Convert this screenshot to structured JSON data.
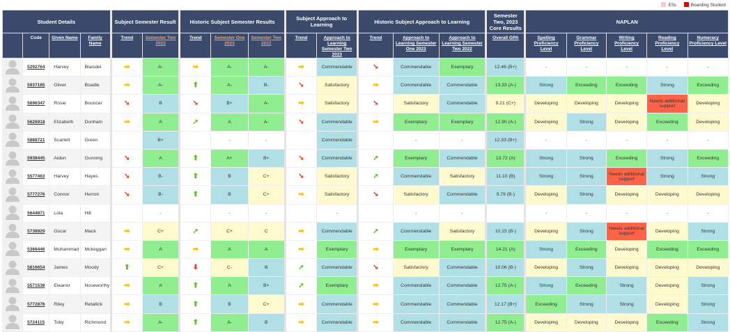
{
  "legend": [
    {
      "label": "ESL",
      "color": "#f7c6d9"
    },
    {
      "label": "Boarding Student",
      "color": "#e00000"
    }
  ],
  "groups": {
    "student_details": "Student Details",
    "subject_result": "Subject Semester Result",
    "historic_result": "Historic Subject Semester Results",
    "subject_atl": "Subject Approach to Learning",
    "historic_atl": "Historic Subject Approach to Learning",
    "core": "Semester Two, 2023 Core Results",
    "naplan": "NAPLAN"
  },
  "columns": [
    "",
    "Code",
    "Given Name",
    "Family Name",
    "Trend",
    "Semester Two 2023",
    "Trend",
    "Semester One 2023",
    "Semester Two 2022",
    "Trend",
    "Approach to Learning Semester Two 2023",
    "Trend",
    "Approach to Learning Semester One 2023",
    "Approach to Learning Semester Two 2022",
    "Overall GPA",
    "Spelling Proficiency Level",
    "Grammar Proficiency Level",
    "Writing Proficiency Level",
    "Reading Proficiency Level",
    "Numeracy Proficiency Level"
  ],
  "colors": {
    "green": "#90ee90",
    "blue": "#b0e0e6",
    "yellow": "#fffacd",
    "red": "#ff6347",
    "header": "#3b4a6b",
    "trend_right": "#ffc000",
    "trend_down": "#e8401c",
    "trend_up": "#5cc01c"
  },
  "rows": [
    {
      "code": "5292764",
      "given": "Harvey",
      "family": "Blaisdel",
      "t1": "right",
      "s2_23": "A-",
      "t2": "right",
      "s1_23": "A-",
      "s2_22": "A-",
      "t3": "right",
      "atl_s2_23": "Commendable",
      "t4": "down",
      "atl_s1_23": "Commendable",
      "atl_s2_22": "Exemplary",
      "gpa": "12.46 (B+)",
      "spelling": "-",
      "grammar": "-",
      "writing": "-",
      "reading": "-",
      "numeracy": "-"
    },
    {
      "code": "5937185",
      "given": "Oliver",
      "family": "Boadle",
      "t1": "right",
      "s2_23": "A-",
      "t2": "up-strong",
      "s1_23": "A-",
      "s2_22": "B-",
      "t3": "down",
      "atl_s2_23": "Satisfactory",
      "t4": "right",
      "atl_s1_23": "Commendable",
      "atl_s2_22": "Commendable",
      "gpa": "13.33 (A-)",
      "spelling": "Strong",
      "grammar": "Exceeding",
      "writing": "Exceeding",
      "reading": "Strong",
      "numeracy": "Exceeding"
    },
    {
      "code": "5696347",
      "given": "Rosie",
      "family": "Bouncer",
      "t1": "down",
      "s2_23": "B",
      "t2": "down",
      "s1_23": "B+",
      "s2_22": "A-",
      "t3": "right",
      "atl_s2_23": "Satisfactory",
      "t4": "down",
      "atl_s1_23": "Satisfactory",
      "atl_s2_22": "Commendable",
      "gpa": "9.21 (C+)",
      "spelling": "Developing",
      "grammar": "Developing",
      "writing": "Developing",
      "reading": "Needs additional support",
      "numeracy": "Developing"
    },
    {
      "code": "5626918",
      "given": "Elizabeth",
      "family": "Dunham",
      "t1": "right",
      "s2_23": "A",
      "t2": "up",
      "s1_23": "A",
      "s2_22": "A-",
      "t3": "down",
      "atl_s2_23": "Commendable",
      "t4": "right",
      "atl_s1_23": "Exemplary",
      "atl_s2_22": "Exemplary",
      "gpa": "12.90 (A-)",
      "spelling": "Developing",
      "grammar": "Strong",
      "writing": "Developing",
      "reading": "Exceeding",
      "numeracy": "Developing"
    },
    {
      "code": "5888721",
      "given": "Scarlett",
      "family": "Green",
      "t1": "",
      "s2_23": "B+",
      "t2": "",
      "s1_23": "-",
      "s2_22": "-",
      "t3": "",
      "atl_s2_23": "Commendable",
      "t4": "",
      "atl_s1_23": "-",
      "atl_s2_22": "-",
      "gpa": "12.33 (B+)",
      "spelling": "-",
      "grammar": "-",
      "writing": "-",
      "reading": "-",
      "numeracy": "-"
    },
    {
      "code": "5938445",
      "given": "Aiden",
      "family": "Gunning",
      "t1": "down",
      "s2_23": "A",
      "t2": "up-strong",
      "s1_23": "A+",
      "s2_22": "B+",
      "t3": "down",
      "atl_s2_23": "Commendable",
      "t4": "up",
      "atl_s1_23": "Exemplary",
      "atl_s2_22": "Commendable",
      "gpa": "13.72 (A)",
      "spelling": "Strong",
      "grammar": "Strong",
      "writing": "Exceeding",
      "reading": "Strong",
      "numeracy": "Exceeding"
    },
    {
      "code": "5577463",
      "given": "Harvey",
      "family": "Hayes",
      "t1": "down",
      "s2_23": "B-",
      "t2": "up-strong",
      "s1_23": "B",
      "s2_22": "C+",
      "t3": "down",
      "atl_s2_23": "Satisfactory",
      "t4": "up",
      "atl_s1_23": "Commendable",
      "atl_s2_22": "Satisfactory",
      "gpa": "11.10 (B)",
      "spelling": "Strong",
      "grammar": "Strong",
      "writing": "Needs additional support",
      "reading": "Strong",
      "numeracy": "Strong"
    },
    {
      "code": "5777276",
      "given": "Connor",
      "family": "Herron",
      "t1": "down",
      "s2_23": "B-",
      "t2": "up-strong",
      "s1_23": "B",
      "s2_22": "C+",
      "t3": "right",
      "atl_s2_23": "Satisfactory",
      "t4": "down",
      "atl_s1_23": "Satisfactory",
      "atl_s2_22": "Commendable",
      "gpa": "9.79 (B-)",
      "spelling": "Developing",
      "grammar": "Strong",
      "writing": "Developing",
      "reading": "Developing",
      "numeracy": "Developing"
    },
    {
      "code": "5644871",
      "given": "Lola",
      "family": "Hill",
      "t1": "",
      "s2_23": "-",
      "t2": "",
      "s1_23": "-",
      "s2_22": "-",
      "t3": "",
      "atl_s2_23": "-",
      "t4": "",
      "atl_s1_23": "-",
      "atl_s2_22": "-",
      "gpa": "",
      "spelling": "-",
      "grammar": "-",
      "writing": "-",
      "reading": "-",
      "numeracy": "-"
    },
    {
      "code": "5738929",
      "given": "Oscar",
      "family": "Mack",
      "t1": "right",
      "s2_23": "C+",
      "t2": "up",
      "s1_23": "C+",
      "s2_22": "C",
      "t3": "right",
      "atl_s2_23": "Commendable",
      "t4": "up",
      "atl_s1_23": "Commendable",
      "atl_s2_22": "Satisfactory",
      "gpa": "10.15 (B-)",
      "spelling": "Developing",
      "grammar": "Strong",
      "writing": "Needs additional support",
      "reading": "Developing",
      "numeracy": "Strong"
    },
    {
      "code": "5366446",
      "given": "Muhammad",
      "family": "Mckeggan",
      "t1": "right",
      "s2_23": "A",
      "t2": "right",
      "s1_23": "A",
      "s2_22": "A",
      "t3": "right",
      "atl_s2_23": "Exemplary",
      "t4": "right",
      "atl_s1_23": "Exemplary",
      "atl_s2_22": "Exemplary",
      "gpa": "14.21 (A)",
      "spelling": "Strong",
      "grammar": "Exceeding",
      "writing": "Developing",
      "reading": "Exceeding",
      "numeracy": "Exceeding"
    },
    {
      "code": "5816654",
      "given": "James",
      "family": "Moody",
      "t1": "up-strong",
      "s2_23": "C+",
      "t2": "down-strong",
      "s1_23": "C-",
      "s2_22": "B",
      "t3": "up",
      "atl_s2_23": "Commendable",
      "t4": "down",
      "atl_s1_23": "Satisfactory",
      "atl_s2_22": "Commendable",
      "gpa": "10.06 (B-)",
      "spelling": "Developing",
      "grammar": "Strong",
      "writing": "Developing",
      "reading": "Developing",
      "numeracy": "Developing"
    },
    {
      "code": "5571538",
      "given": "Eleanor",
      "family": "Noseworthy",
      "t1": "right",
      "s2_23": "A",
      "t2": "up-strong",
      "s1_23": "A",
      "s2_22": "B+",
      "t3": "up",
      "atl_s2_23": "Exemplary",
      "t4": "right",
      "atl_s1_23": "Commendable",
      "atl_s2_22": "Commendable",
      "gpa": "12.75 (A-)",
      "spelling": "Strong",
      "grammar": "Exceeding",
      "writing": "Strong",
      "reading": "Developing",
      "numeracy": "Strong"
    },
    {
      "code": "5772876",
      "given": "Riley",
      "family": "Retallick",
      "t1": "right",
      "s2_23": "B",
      "t2": "up-strong",
      "s1_23": "B",
      "s2_22": "C+",
      "t3": "right",
      "atl_s2_23": "Commendable",
      "t4": "right",
      "atl_s1_23": "Commendable",
      "atl_s2_22": "Commendable",
      "gpa": "12.17 (B+)",
      "spelling": "Exceeding",
      "grammar": "Strong",
      "writing": "Strong",
      "reading": "Developing",
      "numeracy": "Strong"
    },
    {
      "code": "5724115",
      "given": "Toby",
      "family": "Richmond",
      "t1": "right",
      "s2_23": "A-",
      "t2": "up-strong",
      "s1_23": "A-",
      "s2_22": "B",
      "t3": "right",
      "atl_s2_23": "Commendable",
      "t4": "right",
      "atl_s1_23": "Commendable",
      "atl_s2_22": "Commendable",
      "gpa": "12.75 (A-)",
      "spelling": "Developing",
      "grammar": "Developing",
      "writing": "Developing",
      "reading": "Exceeding",
      "numeracy": "Strong"
    }
  ]
}
